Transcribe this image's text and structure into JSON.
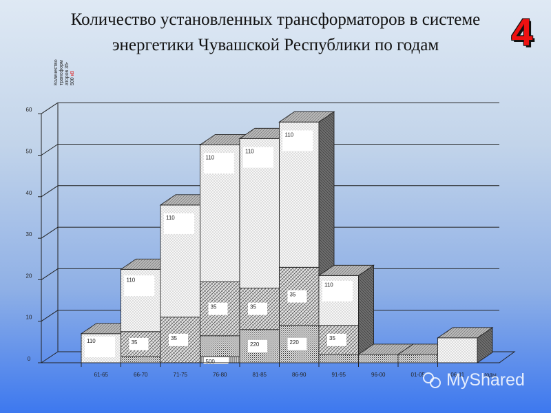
{
  "slide": {
    "title": "Количество установленных трансформаторов в системе энергетики Чувашской Республики по годам",
    "number": "4"
  },
  "watermark": {
    "text": "MyShared"
  },
  "colors": {
    "grid": "#222222",
    "box_face": "#f4f4f4",
    "box_top": "#bbbbbb",
    "box_side": "#7a7a7a",
    "label_bg": "#ffffff"
  },
  "chart_data": {
    "type": "bar",
    "ylabel_lines": [
      "Количество",
      "трансформ",
      "аторов 35-",
      "500 "
    ],
    "ylabel_unit": "кВ",
    "xlabel": "годы",
    "ylim": [
      0,
      60
    ],
    "yticks": [
      0,
      10,
      20,
      30,
      40,
      50,
      60
    ],
    "grid": true,
    "categories": [
      "61-65",
      "66-70",
      "71-75",
      "76-80",
      "81-85",
      "86-90",
      "91-95",
      "96-00",
      "01-05",
      "06-11"
    ],
    "series": [
      {
        "name": "500",
        "values": [
          0,
          0,
          0,
          1.5,
          0,
          0,
          0,
          0,
          0,
          0
        ]
      },
      {
        "name": "220",
        "values": [
          0,
          1.5,
          0,
          5,
          8,
          9,
          2,
          2,
          2,
          0
        ]
      },
      {
        "name": "35",
        "values": [
          0,
          6,
          11,
          13,
          10,
          14,
          7,
          0,
          0,
          0
        ]
      },
      {
        "name": "110",
        "values": [
          7,
          15,
          27,
          33,
          36,
          35,
          12,
          0,
          0,
          6
        ]
      }
    ],
    "data_labels": [
      {
        "category": "61-65",
        "series": "110",
        "text": "110"
      },
      {
        "category": "66-70",
        "series": "35",
        "text": "35"
      },
      {
        "category": "66-70",
        "series": "110",
        "text": "110"
      },
      {
        "category": "71-75",
        "series": "35",
        "text": "35"
      },
      {
        "category": "71-75",
        "series": "110",
        "text": "110"
      },
      {
        "category": "76-80",
        "series": "500",
        "text": "500"
      },
      {
        "category": "76-80",
        "series": "35",
        "text": "35"
      },
      {
        "category": "76-80",
        "series": "110",
        "text": "110"
      },
      {
        "category": "81-85",
        "series": "220",
        "text": "220"
      },
      {
        "category": "81-85",
        "series": "35",
        "text": "35"
      },
      {
        "category": "81-85",
        "series": "110",
        "text": "110"
      },
      {
        "category": "86-90",
        "series": "220",
        "text": "220"
      },
      {
        "category": "86-90",
        "series": "35",
        "text": "35"
      },
      {
        "category": "86-90",
        "series": "110",
        "text": "110"
      },
      {
        "category": "91-95",
        "series": "35",
        "text": "35"
      },
      {
        "category": "91-95",
        "series": "110",
        "text": "110"
      }
    ]
  }
}
